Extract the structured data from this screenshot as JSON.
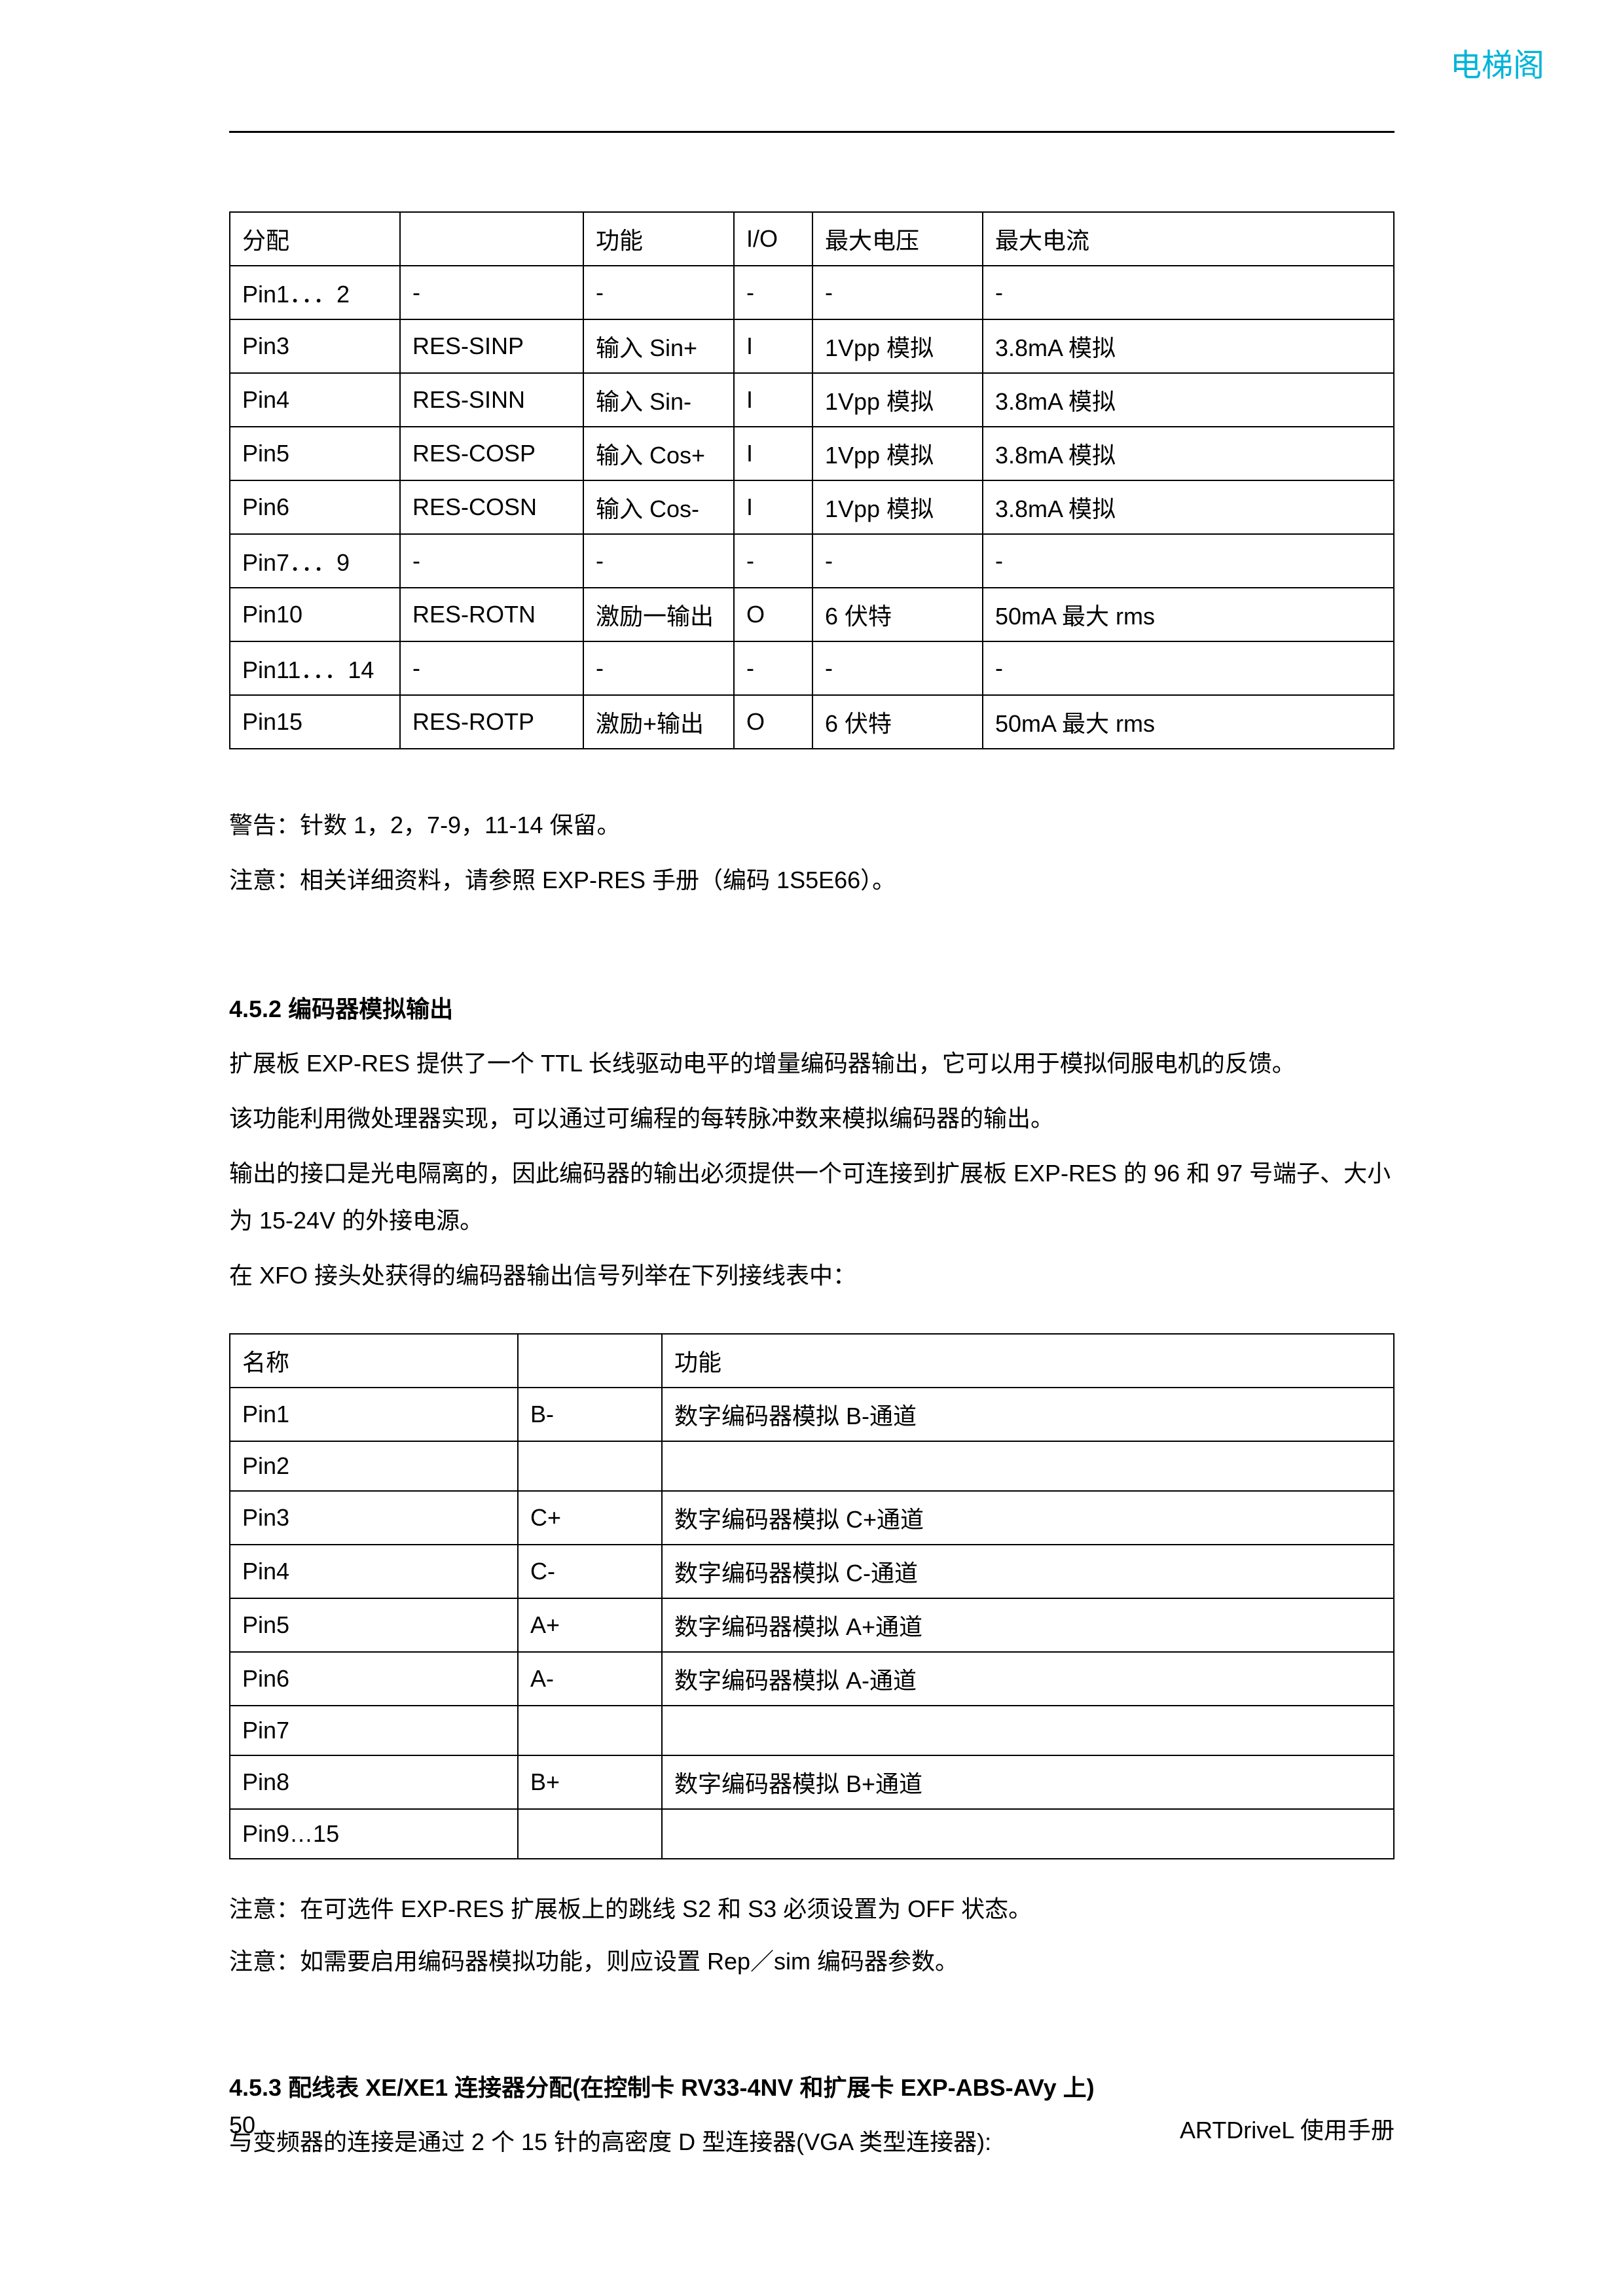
{
  "watermark": "电梯阁",
  "table1": {
    "headers": [
      "分配",
      "",
      "功能",
      "I/O",
      "最大电压",
      "最大电流"
    ],
    "rows": [
      [
        "Pin1．．．2",
        "-",
        "-",
        "-",
        "-",
        "-"
      ],
      [
        "Pin3",
        "RES-SINP",
        "输入 Sin+",
        "I",
        "1Vpp 模拟",
        "3.8mA 模拟"
      ],
      [
        "Pin4",
        "RES-SINN",
        "输入 Sin-",
        "I",
        "1Vpp 模拟",
        "3.8mA 模拟"
      ],
      [
        "Pin5",
        "RES-COSP",
        "输入 Cos+",
        "I",
        "1Vpp 模拟",
        "3.8mA 模拟"
      ],
      [
        "Pin6",
        "RES-COSN",
        "输入 Cos-",
        "I",
        "1Vpp 模拟",
        "3.8mA 模拟"
      ],
      [
        "Pin7．．．9",
        "-",
        "-",
        "-",
        "-",
        "-"
      ],
      [
        "Pin10",
        "RES-ROTN",
        "激励一输出",
        "O",
        "6 伏特",
        "50mA  最大 rms"
      ],
      [
        "Pin11．．．14",
        "-",
        "-",
        "-",
        "-",
        "-"
      ],
      [
        "Pin15",
        "RES-ROTP",
        "激励+输出",
        "O",
        "6 伏特",
        "50mA  最大 rms"
      ]
    ]
  },
  "warning1": "警告：针数 1，2，7-9，11-14 保留。",
  "note1": "注意：相关详细资料，请参照 EXP-RES 手册（编码 1S5E66）。",
  "section452": {
    "heading": "4.5.2    编码器模拟输出",
    "p1": "扩展板 EXP-RES 提供了一个 TTL 长线驱动电平的增量编码器输出，它可以用于模拟伺服电机的反馈。",
    "p2": "该功能利用微处理器实现，可以通过可编程的每转脉冲数来模拟编码器的输出。",
    "p3": "输出的接口是光电隔离的，因此编码器的输出必须提供一个可连接到扩展板 EXP-RES 的 96 和 97 号端子、大小为 15-24V 的外接电源。",
    "p4": "在 XFO 接头处获得的编码器输出信号列举在下列接线表中："
  },
  "table2": {
    "headers": [
      "名称",
      "",
      "功能"
    ],
    "rows": [
      [
        "Pin1",
        "B-",
        "数字编码器模拟 B-通道"
      ],
      [
        "Pin2",
        "",
        ""
      ],
      [
        "Pin3",
        "C+",
        "数字编码器模拟 C+通道"
      ],
      [
        "Pin4",
        "C-",
        "数字编码器模拟 C-通道"
      ],
      [
        "Pin5",
        "A+",
        "数字编码器模拟 A+通道"
      ],
      [
        "Pin6",
        "A-",
        "数字编码器模拟 A-通道"
      ],
      [
        "Pin7",
        "",
        ""
      ],
      [
        "Pin8",
        "B+",
        "数字编码器模拟 B+通道"
      ],
      [
        "Pin9…15",
        "",
        ""
      ]
    ]
  },
  "note2": "注意：在可选件 EXP-RES 扩展板上的跳线 S2 和 S3 必须设置为 OFF 状态。",
  "note3": "注意：如需要启用编码器模拟功能，则应设置 Rep／sim 编码器参数。",
  "section453": {
    "heading": "4.5.3 配线表 XE/XE1 连接器分配(在控制卡 RV33-4NV 和扩展卡 EXP-ABS-AVy 上)",
    "p1": "与变频器的连接是通过 2 个 15 针的高密度 D 型连接器(VGA 类型连接器):"
  },
  "footer": {
    "page": "50",
    "title": "ARTDriveL 使用手册"
  }
}
